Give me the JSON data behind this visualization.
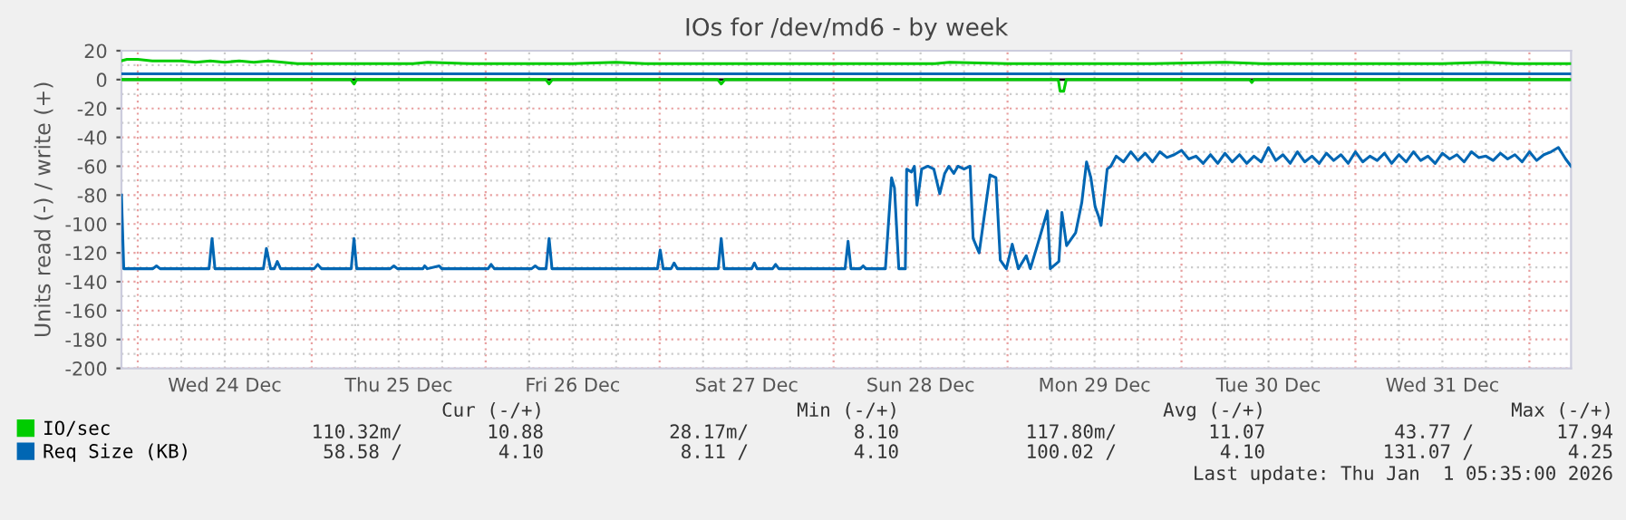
{
  "chart_data": {
    "type": "line",
    "title": "IOs for /dev/md6 - by week",
    "ylabel": "Units read (-) / write (+)",
    "xlim": [
      "2025-12-23T21:45",
      "2026-01-01T05:45"
    ],
    "ylim": [
      -200,
      20
    ],
    "xticks": [
      {
        "value": "2025-12-24T00:00",
        "label": null
      },
      {
        "value": "2025-12-24T12:00",
        "label": "Wed 24 Dec"
      },
      {
        "value": "2025-12-25T00:00",
        "label": null
      },
      {
        "value": "2025-12-25T12:00",
        "label": "Thu 25 Dec"
      },
      {
        "value": "2025-12-26T00:00",
        "label": null
      },
      {
        "value": "2025-12-26T12:00",
        "label": "Fri 26 Dec"
      },
      {
        "value": "2025-12-27T00:00",
        "label": null
      },
      {
        "value": "2025-12-27T12:00",
        "label": "Sat 27 Dec"
      },
      {
        "value": "2025-12-28T00:00",
        "label": null
      },
      {
        "value": "2025-12-28T12:00",
        "label": "Sun 28 Dec"
      },
      {
        "value": "2025-12-29T00:00",
        "label": null
      },
      {
        "value": "2025-12-29T12:00",
        "label": "Mon 29 Dec"
      },
      {
        "value": "2025-12-30T00:00",
        "label": null
      },
      {
        "value": "2025-12-30T12:00",
        "label": "Tue 30 Dec"
      },
      {
        "value": "2025-12-31T00:00",
        "label": null
      },
      {
        "value": "2025-12-31T12:00",
        "label": "Wed 31 Dec"
      },
      {
        "value": "2026-01-01T00:00",
        "label": null
      }
    ],
    "yticks": [
      -200,
      -180,
      -160,
      -140,
      -120,
      -100,
      -80,
      -60,
      -40,
      -20,
      0,
      20
    ],
    "grid": true,
    "legend": "bottom",
    "marker": "none",
    "line_style": "solid",
    "ref_lines": [
      {
        "axis": "y",
        "value": 0,
        "color": "#000000"
      }
    ],
    "annotations": [
      "Cur (-/+)",
      "Min (-/+)",
      "Avg (-/+)",
      "Max (-/+)",
      "110.32m/",
      "10.88",
      "28.17m/",
      "8.10",
      "117.80m/",
      "11.07",
      "43.77 /",
      "17.94",
      "58.58 /",
      "4.10",
      "8.11 /",
      "4.10",
      "100.02 /",
      "4.10",
      "131.07 /",
      "4.25",
      "Last update: Thu Jan  1 05:35:00 2026"
    ],
    "series": [
      {
        "color": "#00cc00",
        "x": [
          "2025-12-23T21:45",
          "2025-12-25T05:24",
          "2025-12-25T05:50",
          "2025-12-25T06:12",
          "2025-12-26T08:18",
          "2025-12-26T08:45",
          "2025-12-26T09:12",
          "2025-12-27T08:00",
          "2025-12-27T08:30",
          "2025-12-27T09:00",
          "2025-12-29T07:00",
          "2025-12-29T07:15",
          "2025-12-29T07:45",
          "2025-12-29T08:06",
          "2025-12-30T09:24",
          "2025-12-30T09:42",
          "2025-12-30T10:00",
          "2026-01-01T05:45"
        ],
        "values": [
          0,
          0,
          -3,
          0,
          0,
          -3,
          0,
          0,
          -3,
          0,
          0,
          -8,
          -8,
          0,
          0,
          -2,
          0,
          0
        ]
      },
      {
        "name": "IO/sec",
        "color": "#00cc00",
        "x": [
          "2025-12-23T21:45",
          "2025-12-23T22:30",
          "2025-12-24T00:00",
          "2025-12-24T02:00",
          "2025-12-24T04:00",
          "2025-12-24T06:00",
          "2025-12-24T08:00",
          "2025-12-24T10:00",
          "2025-12-24T12:00",
          "2025-12-24T14:00",
          "2025-12-24T16:00",
          "2025-12-24T18:00",
          "2025-12-24T20:00",
          "2025-12-24T22:00",
          "2025-12-25T06:00",
          "2025-12-25T14:00",
          "2025-12-25T16:00",
          "2025-12-25T22:00",
          "2025-12-26T02:00",
          "2025-12-26T08:00",
          "2025-12-26T12:00",
          "2025-12-26T18:00",
          "2025-12-26T22:00",
          "2025-12-27T08:00",
          "2025-12-27T18:00",
          "2025-12-28T04:00",
          "2025-12-28T14:00",
          "2025-12-28T16:00",
          "2025-12-29T00:00",
          "2025-12-29T10:00",
          "2025-12-29T20:00",
          "2025-12-30T06:00",
          "2025-12-30T11:00",
          "2025-12-31T02:00",
          "2025-12-31T12:00",
          "2025-12-31T18:00",
          "2025-12-31T22:00",
          "2026-01-01T05:45"
        ],
        "values": [
          13,
          14,
          14,
          13,
          13,
          13,
          12,
          13,
          12,
          13,
          12,
          13,
          12,
          11,
          11,
          11,
          12,
          11,
          11,
          11,
          11,
          12,
          11,
          11,
          11,
          11,
          11,
          12,
          11,
          11,
          11,
          12,
          11,
          11,
          11,
          12,
          11,
          11
        ]
      },
      {
        "color": "#0066b3",
        "x": [
          "2025-12-23T21:45",
          "2025-12-23T22:04",
          "2025-12-24T02:05",
          "2025-12-24T02:35",
          "2025-12-24T03:05",
          "2025-12-24T09:50",
          "2025-12-24T10:15",
          "2025-12-24T10:39",
          "2025-12-24T17:20",
          "2025-12-24T17:45",
          "2025-12-24T18:20",
          "2025-12-24T18:50",
          "2025-12-24T19:15",
          "2025-12-24T19:42",
          "2025-12-25T00:20",
          "2025-12-25T00:50",
          "2025-12-25T01:20",
          "2025-12-25T05:27",
          "2025-12-25T05:50",
          "2025-12-25T06:12",
          "2025-12-25T10:50",
          "2025-12-25T11:20",
          "2025-12-25T11:50",
          "2025-12-25T15:20",
          "2025-12-25T15:35",
          "2025-12-25T15:57",
          "2025-12-25T17:35",
          "2025-12-25T17:57",
          "2025-12-26T00:20",
          "2025-12-26T00:45",
          "2025-12-26T01:12",
          "2025-12-26T06:20",
          "2025-12-26T06:50",
          "2025-12-26T07:20",
          "2025-12-26T08:20",
          "2025-12-26T08:45",
          "2025-12-26T09:09",
          "2025-12-26T23:42",
          "2025-12-27T00:05",
          "2025-12-27T00:30",
          "2025-12-27T01:35",
          "2025-12-27T02:00",
          "2025-12-27T02:27",
          "2025-12-27T08:05",
          "2025-12-27T08:30",
          "2025-12-27T08:54",
          "2025-12-27T12:42",
          "2025-12-27T13:05",
          "2025-12-27T13:27",
          "2025-12-27T15:35",
          "2025-12-27T16:00",
          "2025-12-27T16:27",
          "2025-12-28T01:35",
          "2025-12-28T02:00",
          "2025-12-28T02:24",
          "2025-12-28T03:42",
          "2025-12-28T04:05",
          "2025-12-28T04:27",
          "2025-12-28T07:09",
          "2025-12-28T08:00",
          "2025-12-28T08:24",
          "2025-12-28T09:00",
          "2025-12-28T09:54",
          "2025-12-28T10:05",
          "2025-12-28T10:45",
          "2025-12-28T11:09",
          "2025-12-28T11:30",
          "2025-12-28T12:09",
          "2025-12-28T13:00",
          "2025-12-28T13:50",
          "2025-12-28T14:39",
          "2025-12-28T15:20",
          "2025-12-28T15:54",
          "2025-12-28T16:35",
          "2025-12-28T17:09",
          "2025-12-28T18:00",
          "2025-12-28T18:50",
          "2025-12-28T19:15",
          "2025-12-28T20:05",
          "2025-12-28T21:35",
          "2025-12-28T22:24",
          "2025-12-28T23:00",
          "2025-12-28T23:50",
          "2025-12-29T00:39",
          "2025-12-29T01:30",
          "2025-12-29T02:35",
          "2025-12-29T03:09",
          "2025-12-29T04:24",
          "2025-12-29T05:30",
          "2025-12-29T05:54",
          "2025-12-29T07:05",
          "2025-12-29T07:30",
          "2025-12-29T08:09",
          "2025-12-29T09:24",
          "2025-12-29T10:15",
          "2025-12-29T10:54",
          "2025-12-29T11:30",
          "2025-12-29T12:05",
          "2025-12-29T12:35",
          "2025-12-29T12:54",
          "2025-12-29T13:45",
          "2025-12-29T14:15",
          "2025-12-29T15:00",
          "2025-12-29T16:00",
          "2025-12-29T17:00",
          "2025-12-29T18:00",
          "2025-12-29T19:00",
          "2025-12-29T20:00",
          "2025-12-29T21:00",
          "2025-12-29T22:00",
          "2025-12-29T23:00",
          "2025-12-30T00:00",
          "2025-12-30T01:00",
          "2025-12-30T02:00",
          "2025-12-30T03:00",
          "2025-12-30T04:00",
          "2025-12-30T05:00",
          "2025-12-30T06:00",
          "2025-12-30T07:00",
          "2025-12-30T08:00",
          "2025-12-30T09:00",
          "2025-12-30T10:00",
          "2025-12-30T11:00",
          "2025-12-30T12:00",
          "2025-12-30T13:00",
          "2025-12-30T14:00",
          "2025-12-30T15:00",
          "2025-12-30T16:00",
          "2025-12-30T17:00",
          "2025-12-30T18:00",
          "2025-12-30T19:00",
          "2025-12-30T20:00",
          "2025-12-30T21:00",
          "2025-12-30T22:00",
          "2025-12-30T23:00",
          "2025-12-31T00:00",
          "2025-12-31T01:00",
          "2025-12-31T02:00",
          "2025-12-31T03:00",
          "2025-12-31T04:00",
          "2025-12-31T05:00",
          "2025-12-31T06:00",
          "2025-12-31T07:00",
          "2025-12-31T08:00",
          "2025-12-31T09:00",
          "2025-12-31T10:00",
          "2025-12-31T11:00",
          "2025-12-31T12:00",
          "2025-12-31T13:00",
          "2025-12-31T14:00",
          "2025-12-31T15:00",
          "2025-12-31T16:00",
          "2025-12-31T17:00",
          "2025-12-31T18:00",
          "2025-12-31T19:00",
          "2025-12-31T20:00",
          "2025-12-31T21:00",
          "2025-12-31T22:00",
          "2025-12-31T23:00",
          "2026-01-01T00:00",
          "2026-01-01T01:00",
          "2026-01-01T02:00",
          "2026-01-01T03:00",
          "2026-01-01T04:00",
          "2026-01-01T05:00",
          "2026-01-01T05:45"
        ],
        "values": [
          -80,
          -131,
          -131,
          -129,
          -131,
          -131,
          -110,
          -131,
          -131,
          -117,
          -131,
          -131,
          -126,
          -131,
          -131,
          -128,
          -131,
          -131,
          -110,
          -131,
          -131,
          -129,
          -131,
          -131,
          -129,
          -131,
          -129,
          -131,
          -131,
          -128,
          -131,
          -131,
          -129,
          -131,
          -131,
          -110,
          -131,
          -131,
          -118,
          -131,
          -131,
          -127,
          -131,
          -131,
          -110,
          -131,
          -131,
          -127,
          -131,
          -131,
          -128,
          -131,
          -131,
          -112,
          -131,
          -131,
          -129,
          -131,
          -131,
          -68,
          -75,
          -131,
          -131,
          -62,
          -64,
          -60,
          -87,
          -62,
          -60,
          -62,
          -79,
          -65,
          -60,
          -65,
          -60,
          -62,
          -60,
          -110,
          -120,
          -66,
          -68,
          -125,
          -131,
          -114,
          -131,
          -122,
          -131,
          -110,
          -91,
          -131,
          -126,
          -92,
          -115,
          -106,
          -85,
          -57,
          -68,
          -88,
          -95,
          -101,
          -62,
          -60,
          -53,
          -57,
          -50,
          -56,
          -51,
          -57,
          -50,
          -54,
          -52,
          -49,
          -55,
          -53,
          -58,
          -52,
          -58,
          -51,
          -57,
          -52,
          -58,
          -53,
          -57,
          -47,
          -56,
          -52,
          -58,
          -50,
          -57,
          -53,
          -58,
          -51,
          -56,
          -52,
          -58,
          -50,
          -57,
          -53,
          -56,
          -51,
          -58,
          -52,
          -57,
          -50,
          -56,
          -53,
          -58,
          -51,
          -55,
          -52,
          -57,
          -50,
          -54,
          -53,
          -56,
          -51,
          -55,
          -52,
          -57,
          -50,
          -56,
          -52,
          -50,
          -47,
          -55,
          -60
        ]
      },
      {
        "name": "Req Size (KB)",
        "color": "#0066b3",
        "x": [
          "2025-12-23T21:45",
          "2026-01-01T05:45"
        ],
        "values": [
          4,
          4
        ]
      }
    ]
  }
}
